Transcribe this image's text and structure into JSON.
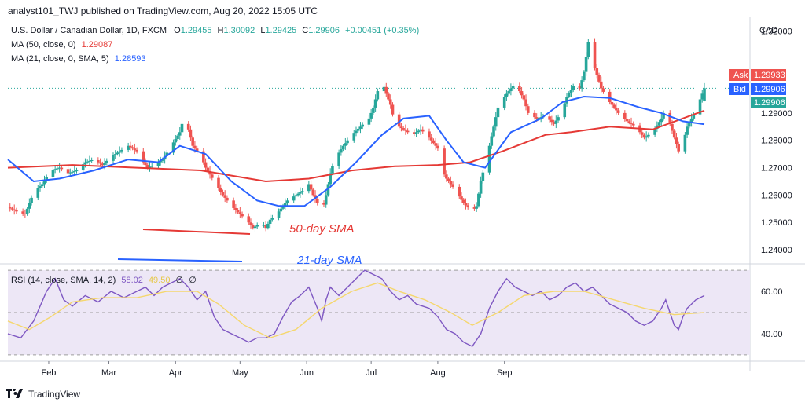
{
  "header": {
    "text": "analyst101_TWJ published on TradingView.com, Aug 20, 2022 15:05 UTC"
  },
  "legend": {
    "symbol": "U.S. Dollar / Canadian Dollar, 1D, FXCM",
    "o_label": "O",
    "o": "1.29455",
    "h_label": "H",
    "h": "1.30092",
    "l_label": "L",
    "l": "1.29425",
    "c_label": "C",
    "c": "1.29906",
    "change": "+0.00451 (+0.35%)",
    "ma50_label": "MA (50, close, 0)",
    "ma50_value": "1.29087",
    "ma21_label": "MA (21, close, 0, SMA, 5)",
    "ma21_value": "1.28593"
  },
  "rsi_legend": {
    "label": "RSI (14, close, SMA, 14, 2)",
    "value": "58.02",
    "sma_value": "49.50",
    "extra1": "∅",
    "extra2": "∅"
  },
  "annotations": {
    "sma50": "50-day SMA",
    "sma21": "21-day SMA"
  },
  "price_axis": {
    "currency": "CAD",
    "ask_label": "Ask",
    "ask_value": "1.29933",
    "bid_label": "Bid",
    "bid_value": "1.29906",
    "last_value": "1.29906"
  },
  "footer": {
    "brand": "TradingView"
  },
  "colors": {
    "up": "#26a69a",
    "down": "#ef5350",
    "ma50": "#e53935",
    "ma21": "#2962ff",
    "rsi": "#7e57c2",
    "rsi_sma": "#f5d76e",
    "rsi_band": "#ede7f6"
  },
  "chart_data": [
    {
      "type": "candlestick",
      "title": "U.S. Dollar / Canadian Dollar, 1D, FXCM",
      "x_tick_labels": [
        "Feb",
        "Mar",
        "Apr",
        "May",
        "Jun",
        "Jul",
        "Aug",
        "Sep"
      ],
      "y_tick_labels": [
        "1.32000",
        "1.29000",
        "1.28000",
        "1.27000",
        "1.26000",
        "1.25000",
        "1.24000"
      ],
      "ylim": [
        1.236,
        1.325
      ],
      "last": {
        "open": 1.29455,
        "high": 1.30092,
        "low": 1.29425,
        "close": 1.29906
      },
      "close_path": [
        [
          0,
          1.2555
        ],
        [
          4,
          1.254
        ],
        [
          8,
          1.253
        ],
        [
          12,
          1.261
        ],
        [
          16,
          1.264
        ],
        [
          20,
          1.269
        ],
        [
          24,
          1.27
        ],
        [
          28,
          1.268
        ],
        [
          32,
          1.269
        ],
        [
          36,
          1.272
        ],
        [
          40,
          1.273
        ],
        [
          44,
          1.271
        ],
        [
          48,
          1.274
        ],
        [
          52,
          1.276
        ],
        [
          56,
          1.278
        ],
        [
          60,
          1.276
        ],
        [
          62,
          1.273
        ],
        [
          65,
          1.27
        ],
        [
          68,
          1.271
        ],
        [
          72,
          1.273
        ],
        [
          76,
          1.278
        ],
        [
          80,
          1.283
        ],
        [
          82,
          1.289
        ],
        [
          84,
          1.284
        ],
        [
          86,
          1.278
        ],
        [
          90,
          1.274
        ],
        [
          92,
          1.27
        ],
        [
          96,
          1.265
        ],
        [
          100,
          1.26
        ],
        [
          104,
          1.256
        ],
        [
          108,
          1.253
        ],
        [
          112,
          1.25
        ],
        [
          114,
          1.248
        ],
        [
          118,
          1.25
        ],
        [
          120,
          1.248
        ],
        [
          122,
          1.251
        ],
        [
          126,
          1.254
        ],
        [
          130,
          1.258
        ],
        [
          134,
          1.26
        ],
        [
          138,
          1.262
        ],
        [
          140,
          1.264
        ],
        [
          142,
          1.26
        ],
        [
          144,
          1.257
        ],
        [
          146,
          1.253
        ],
        [
          148,
          1.26
        ],
        [
          150,
          1.268
        ],
        [
          152,
          1.273
        ],
        [
          156,
          1.278
        ],
        [
          160,
          1.282
        ],
        [
          164,
          1.285
        ],
        [
          168,
          1.288
        ],
        [
          170,
          1.292
        ],
        [
          172,
          1.298
        ],
        [
          174,
          1.302
        ],
        [
          176,
          1.297
        ],
        [
          178,
          1.293
        ],
        [
          180,
          1.286
        ],
        [
          184,
          1.284
        ],
        [
          188,
          1.282
        ],
        [
          192,
          1.284
        ],
        [
          196,
          1.281
        ],
        [
          200,
          1.277
        ],
        [
          202,
          1.269
        ],
        [
          204,
          1.266
        ],
        [
          208,
          1.262
        ],
        [
          212,
          1.257
        ],
        [
          216,
          1.254
        ],
        [
          218,
          1.256
        ],
        [
          220,
          1.265
        ],
        [
          224,
          1.278
        ],
        [
          226,
          1.285
        ],
        [
          228,
          1.292
        ],
        [
          232,
          1.297
        ],
        [
          236,
          1.301
        ],
        [
          240,
          1.295
        ],
        [
          242,
          1.29
        ],
        [
          246,
          1.288
        ],
        [
          250,
          1.289
        ],
        [
          254,
          1.286
        ],
        [
          258,
          1.291
        ],
        [
          260,
          1.296
        ],
        [
          264,
          1.301
        ],
        [
          266,
          1.299
        ],
        [
          268,
          1.305
        ],
        [
          270,
          1.316
        ],
        [
          272,
          1.309
        ],
        [
          274,
          1.304
        ],
        [
          276,
          1.299
        ],
        [
          280,
          1.294
        ],
        [
          284,
          1.29
        ],
        [
          288,
          1.287
        ],
        [
          292,
          1.285
        ],
        [
          296,
          1.281
        ],
        [
          300,
          1.283
        ],
        [
          304,
          1.288
        ],
        [
          306,
          1.292
        ],
        [
          308,
          1.286
        ],
        [
          310,
          1.281
        ],
        [
          312,
          1.276
        ],
        [
          314,
          1.279
        ],
        [
          316,
          1.285
        ],
        [
          318,
          1.288
        ],
        [
          320,
          1.291
        ],
        [
          322,
          1.295
        ],
        [
          324,
          1.2991
        ]
      ],
      "series": [
        {
          "name": "MA (50, close, 0)",
          "points": [
            [
              0,
              1.27
            ],
            [
              30,
              1.271
            ],
            [
              60,
              1.27
            ],
            [
              90,
              1.269
            ],
            [
              120,
              1.265
            ],
            [
              140,
              1.266
            ],
            [
              160,
              1.269
            ],
            [
              180,
              1.2705
            ],
            [
              200,
              1.271
            ],
            [
              215,
              1.272
            ],
            [
              230,
              1.276
            ],
            [
              250,
              1.282
            ],
            [
              262,
              1.283
            ],
            [
              280,
              1.285
            ],
            [
              300,
              1.284
            ],
            [
              324,
              1.2909
            ]
          ]
        },
        {
          "name": "MA (21, close, 0, SMA, 5)",
          "points": [
            [
              0,
              1.273
            ],
            [
              12,
              1.265
            ],
            [
              24,
              1.266
            ],
            [
              40,
              1.269
            ],
            [
              56,
              1.273
            ],
            [
              70,
              1.272
            ],
            [
              80,
              1.278
            ],
            [
              92,
              1.275
            ],
            [
              104,
              1.265
            ],
            [
              116,
              1.258
            ],
            [
              126,
              1.256
            ],
            [
              138,
              1.256
            ],
            [
              150,
              1.263
            ],
            [
              162,
              1.272
            ],
            [
              174,
              1.282
            ],
            [
              184,
              1.288
            ],
            [
              196,
              1.289
            ],
            [
              204,
              1.28
            ],
            [
              212,
              1.272
            ],
            [
              222,
              1.27
            ],
            [
              234,
              1.283
            ],
            [
              248,
              1.288
            ],
            [
              258,
              1.294
            ],
            [
              268,
              1.296
            ],
            [
              280,
              1.2955
            ],
            [
              294,
              1.292
            ],
            [
              304,
              1.29
            ],
            [
              314,
              1.287
            ],
            [
              324,
              1.2859
            ]
          ]
        }
      ]
    },
    {
      "type": "line",
      "title": "RSI (14, close, SMA, 14, 2)",
      "y_tick_labels": [
        "60.00",
        "40.00"
      ],
      "ylim": [
        27,
        73
      ],
      "bands": [
        70,
        50,
        30
      ],
      "series": [
        {
          "name": "RSI",
          "points": [
            [
              0,
              40
            ],
            [
              6,
              38
            ],
            [
              12,
              46
            ],
            [
              18,
              60
            ],
            [
              22,
              66
            ],
            [
              26,
              56
            ],
            [
              30,
              53
            ],
            [
              36,
              58
            ],
            [
              42,
              55
            ],
            [
              48,
              60
            ],
            [
              54,
              57
            ],
            [
              60,
              60
            ],
            [
              64,
              62
            ],
            [
              68,
              58
            ],
            [
              72,
              62
            ],
            [
              76,
              64
            ],
            [
              80,
              66
            ],
            [
              84,
              62
            ],
            [
              88,
              56
            ],
            [
              92,
              60
            ],
            [
              96,
              48
            ],
            [
              100,
              42
            ],
            [
              104,
              40
            ],
            [
              108,
              38
            ],
            [
              112,
              36
            ],
            [
              116,
              38
            ],
            [
              120,
              38
            ],
            [
              124,
              40
            ],
            [
              128,
              48
            ],
            [
              132,
              55
            ],
            [
              136,
              58
            ],
            [
              140,
              62
            ],
            [
              144,
              52
            ],
            [
              146,
              46
            ],
            [
              148,
              56
            ],
            [
              150,
              62
            ],
            [
              154,
              58
            ],
            [
              158,
              62
            ],
            [
              162,
              66
            ],
            [
              166,
              70
            ],
            [
              170,
              68
            ],
            [
              174,
              66
            ],
            [
              178,
              60
            ],
            [
              182,
              56
            ],
            [
              186,
              58
            ],
            [
              190,
              54
            ],
            [
              196,
              52
            ],
            [
              200,
              48
            ],
            [
              204,
              42
            ],
            [
              208,
              40
            ],
            [
              212,
              36
            ],
            [
              216,
              34
            ],
            [
              220,
              40
            ],
            [
              224,
              52
            ],
            [
              228,
              60
            ],
            [
              232,
              66
            ],
            [
              236,
              62
            ],
            [
              240,
              60
            ],
            [
              244,
              58
            ],
            [
              248,
              60
            ],
            [
              252,
              56
            ],
            [
              256,
              58
            ],
            [
              260,
              62
            ],
            [
              264,
              64
            ],
            [
              268,
              60
            ],
            [
              272,
              62
            ],
            [
              276,
              58
            ],
            [
              280,
              54
            ],
            [
              284,
              52
            ],
            [
              288,
              50
            ],
            [
              292,
              46
            ],
            [
              296,
              44
            ],
            [
              300,
              46
            ],
            [
              304,
              52
            ],
            [
              306,
              56
            ],
            [
              308,
              50
            ],
            [
              310,
              44
            ],
            [
              312,
              42
            ],
            [
              314,
              48
            ],
            [
              316,
              52
            ],
            [
              318,
              54
            ],
            [
              320,
              56
            ],
            [
              324,
              58
            ]
          ]
        },
        {
          "name": "SMA",
          "points": [
            [
              0,
              46
            ],
            [
              10,
              42
            ],
            [
              20,
              48
            ],
            [
              30,
              55
            ],
            [
              44,
              57
            ],
            [
              60,
              57
            ],
            [
              74,
              60
            ],
            [
              88,
              60
            ],
            [
              98,
              54
            ],
            [
              110,
              44
            ],
            [
              122,
              38
            ],
            [
              134,
              42
            ],
            [
              146,
              52
            ],
            [
              160,
              60
            ],
            [
              172,
              64
            ],
            [
              182,
              60
            ],
            [
              194,
              56
            ],
            [
              206,
              50
            ],
            [
              216,
              44
            ],
            [
              228,
              50
            ],
            [
              240,
              58
            ],
            [
              254,
              60
            ],
            [
              268,
              60
            ],
            [
              282,
              56
            ],
            [
              296,
              52
            ],
            [
              310,
              49
            ],
            [
              324,
              50
            ]
          ]
        }
      ]
    }
  ]
}
